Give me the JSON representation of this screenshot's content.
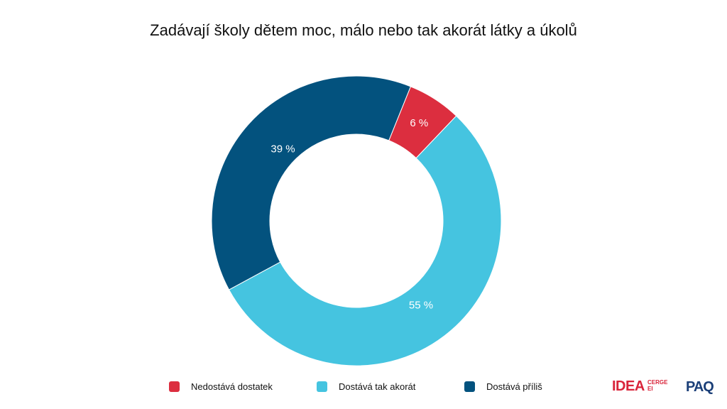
{
  "chart_data": {
    "type": "pie",
    "title": "Zadávají školy dětem moc, málo nebo tak akorát látky a úkolů",
    "categories": [
      "Nedostává dostatek",
      "Dostává tak akorát",
      "Dostává příliš"
    ],
    "values": [
      6,
      55,
      39
    ],
    "labels": [
      "6 %",
      "55 %",
      "39 %"
    ],
    "colors": [
      "#DC2E3F",
      "#45C4E0",
      "#03527E"
    ],
    "donut": true,
    "legend_position": "bottom"
  },
  "logos": {
    "idea": "IDEA",
    "cerge": "CERGE",
    "ei": "EI",
    "paq": "PAQ",
    "idea_color": "#D9243A",
    "paq_color": "#1B3F78",
    "paq_accent": "#F2A900"
  }
}
